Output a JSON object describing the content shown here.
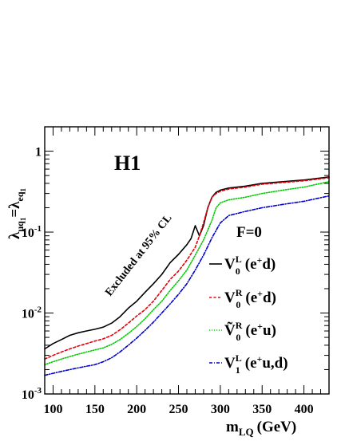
{
  "chart_data": {
    "type": "line",
    "title": "H1",
    "xlabel": "m",
    "xlabel_sub": "LQ",
    "xlabel_unit": "(GeV)",
    "ylabel": {
      "lambda1": "λ",
      "sub1": "μq",
      "subsub1": "1",
      "eq": "=",
      "lambda2": "λ",
      "sub2": "eq",
      "subsub2": "1"
    },
    "xlim": [
      90,
      430
    ],
    "ylim": [
      0.001,
      2.0
    ],
    "yscale": "log",
    "grid": false,
    "xticks": [
      100,
      150,
      200,
      250,
      300,
      350,
      400
    ],
    "xtick_labels": [
      "100",
      "150",
      "200",
      "250",
      "300",
      "350",
      "400"
    ],
    "yticks": [
      {
        "value": 0.001,
        "base": "10",
        "exp": "-3"
      },
      {
        "value": 0.01,
        "base": "10",
        "exp": "-2"
      },
      {
        "value": 0.1,
        "base": "10",
        "exp": "-1"
      },
      {
        "value": 1,
        "base": "1",
        "exp": ""
      }
    ],
    "annotation": "Excluded at 95% CL",
    "legend_header": "F=0",
    "legend_position": "right",
    "series": [
      {
        "name": {
          "sym": "V",
          "sup": "L",
          "sub": "0",
          "proc": "(e",
          "procsup": "+",
          "proctail": "d)"
        },
        "color": "#000000",
        "style": "solid",
        "x": [
          90,
          100,
          110,
          120,
          130,
          140,
          150,
          160,
          170,
          180,
          190,
          200,
          210,
          220,
          230,
          240,
          250,
          260,
          265,
          270,
          275,
          280,
          285,
          290,
          295,
          300,
          310,
          330,
          350,
          375,
          400,
          430
        ],
        "y": [
          0.0036,
          0.0042,
          0.0047,
          0.0053,
          0.0057,
          0.006,
          0.0063,
          0.0067,
          0.0075,
          0.009,
          0.0115,
          0.014,
          0.018,
          0.023,
          0.03,
          0.042,
          0.053,
          0.07,
          0.083,
          0.12,
          0.09,
          0.12,
          0.2,
          0.27,
          0.31,
          0.33,
          0.35,
          0.37,
          0.4,
          0.42,
          0.44,
          0.48
        ]
      },
      {
        "name": {
          "sym": "V",
          "sup": "R",
          "sub": "0",
          "proc": "(e",
          "procsup": "+",
          "proctail": "d)"
        },
        "color": "#e8000b",
        "style": "dashed",
        "x": [
          90,
          100,
          110,
          120,
          130,
          140,
          150,
          160,
          170,
          180,
          190,
          200,
          210,
          220,
          230,
          240,
          250,
          260,
          270,
          275,
          280,
          285,
          290,
          295,
          300,
          310,
          330,
          350,
          375,
          400,
          430
        ],
        "y": [
          0.0027,
          0.003,
          0.0033,
          0.0036,
          0.0039,
          0.0042,
          0.0045,
          0.0048,
          0.0053,
          0.0062,
          0.0075,
          0.0092,
          0.011,
          0.014,
          0.019,
          0.026,
          0.033,
          0.045,
          0.065,
          0.09,
          0.13,
          0.2,
          0.27,
          0.3,
          0.32,
          0.34,
          0.36,
          0.39,
          0.41,
          0.43,
          0.47
        ]
      },
      {
        "name": {
          "sym": "Ṽ",
          "sup": "R",
          "sub": "0",
          "proc": "(e",
          "procsup": "+",
          "proctail": "u)"
        },
        "color": "#00cc00",
        "style": "dotted",
        "x": [
          90,
          100,
          110,
          120,
          130,
          140,
          150,
          160,
          170,
          180,
          190,
          200,
          210,
          220,
          230,
          240,
          250,
          260,
          270,
          280,
          290,
          295,
          300,
          310,
          330,
          350,
          375,
          400,
          430
        ],
        "y": [
          0.0023,
          0.0025,
          0.0027,
          0.0029,
          0.0031,
          0.0033,
          0.0035,
          0.0037,
          0.0041,
          0.0047,
          0.0056,
          0.0068,
          0.0085,
          0.011,
          0.014,
          0.019,
          0.025,
          0.034,
          0.052,
          0.08,
          0.14,
          0.2,
          0.23,
          0.25,
          0.27,
          0.3,
          0.33,
          0.36,
          0.42
        ]
      },
      {
        "name": {
          "sym": "V",
          "sup": "L",
          "sub": "1",
          "proc": "(e",
          "procsup": "+",
          "proctail": "u,d)"
        },
        "color": "#0000cc",
        "style": "dashdot",
        "x": [
          90,
          100,
          110,
          120,
          130,
          140,
          150,
          160,
          170,
          180,
          190,
          200,
          210,
          220,
          230,
          240,
          250,
          260,
          270,
          280,
          290,
          300,
          310,
          330,
          350,
          375,
          400,
          430
        ],
        "y": [
          0.0017,
          0.0018,
          0.0019,
          0.002,
          0.0021,
          0.0022,
          0.0023,
          0.0025,
          0.0028,
          0.0033,
          0.004,
          0.0049,
          0.0061,
          0.0077,
          0.01,
          0.013,
          0.017,
          0.023,
          0.034,
          0.052,
          0.085,
          0.13,
          0.16,
          0.18,
          0.2,
          0.22,
          0.24,
          0.28
        ]
      }
    ]
  }
}
